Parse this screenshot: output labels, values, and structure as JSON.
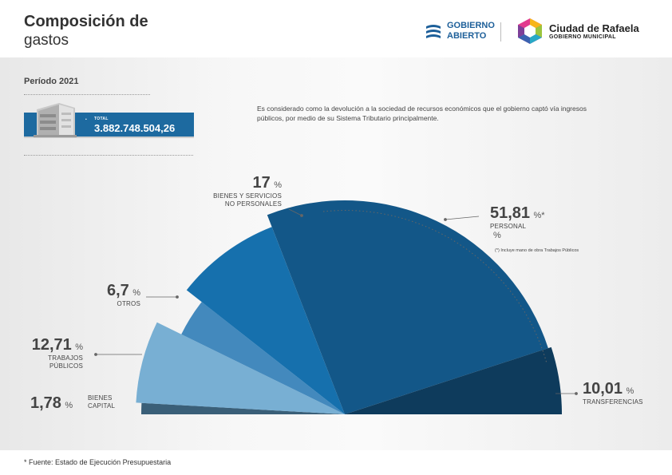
{
  "header": {
    "title_line1": "Composición de",
    "title_line2": "gastos",
    "logo_gobierno_abierto": {
      "line1": "GOBIERNO",
      "line2": "ABIERTO",
      "icon": "waves-icon"
    },
    "logo_ciudad": {
      "name": "Ciudad de Rafaela",
      "sub": "GOBIERNO MUNICIPAL",
      "icon": "hexagon-logo-icon"
    }
  },
  "periodo": "Período 2021",
  "total": {
    "label": "TOTAL",
    "value": "3.882.748.504,26",
    "icon": "building-icon"
  },
  "description": "Es considerado como la devolución a la sociedad de recursos económicos que el gobierno captó vía ingresos públicos, por medio de su Sistema Tributario principalmente.",
  "footnote_personal": "(*) Incluye mano de obra Trabajos Públicos",
  "source": "* Fuente: Estado de Ejecución Presupuestaria",
  "labels": {
    "personal": {
      "value": "51,81",
      "pct": "%*",
      "cat": "PERSONAL",
      "pct2": "%"
    },
    "transferencias": {
      "value": "10,01",
      "pct": "%",
      "cat": "TRANSFERENCIAS"
    },
    "bienes_servicios": {
      "value": "17",
      "pct": "%",
      "cat1": "BIENES Y SERVICIOS",
      "cat2": "NO PERSONALES"
    },
    "otros": {
      "value": "6,7",
      "pct": "%",
      "cat": "OTROS"
    },
    "trabajos": {
      "value": "12,71",
      "pct": "%",
      "cat1": "TRABAJOS",
      "cat2": "PÚBLICOS"
    },
    "bienes_capital": {
      "value": "1,78",
      "pct": "%",
      "cat1": "BIENES",
      "cat2": "CAPITAL"
    }
  },
  "chart_data": {
    "type": "pie",
    "subtype": "half-pie",
    "period": "2021",
    "total": 3882748504.26,
    "categories": [
      "BIENES CAPITAL",
      "TRABAJOS PÚBLICOS",
      "OTROS",
      "BIENES Y SERVICIOS NO PERSONALES",
      "PERSONAL",
      "TRANSFERENCIAS"
    ],
    "values": [
      1.78,
      12.71,
      6.7,
      17,
      51.81,
      10.01
    ],
    "colors": [
      "#3a5f78",
      "#78afd3",
      "#4389bd",
      "#1670ad",
      "#135788",
      "#0e3b5c"
    ],
    "unit": "%"
  }
}
